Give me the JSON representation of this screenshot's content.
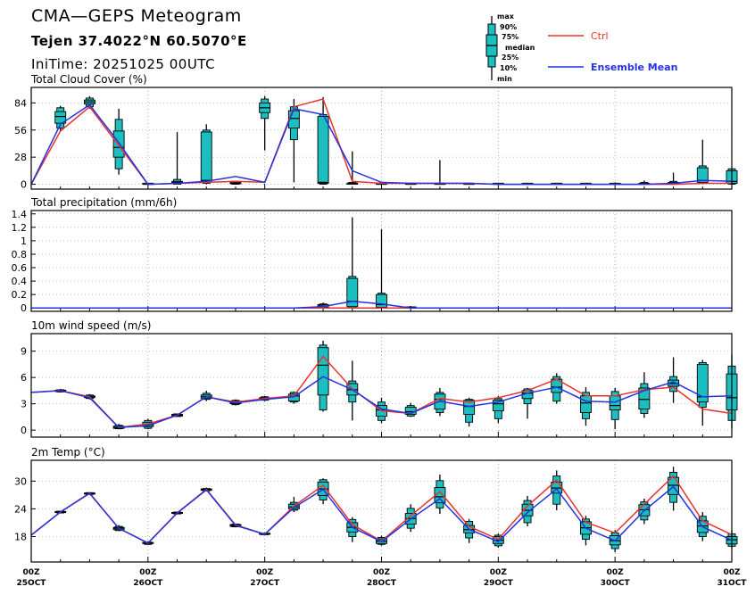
{
  "header": {
    "title": "CMA—GEPS Meteogram",
    "location": "Tejen 37.4022°N 60.5070°E",
    "init_time": "IniTime: 20251025 00UTC"
  },
  "legend": {
    "box_labels": [
      "max",
      "90%",
      "75%",
      "median",
      "25%",
      "10%",
      "min"
    ],
    "ctrl_label": "Ctrl",
    "mean_label": "Ensemble Mean",
    "ctrl_color": "#e8322e",
    "mean_color": "#2433e0",
    "box_fill": "#1cbfc0"
  },
  "x_axis": {
    "tick_hour_labels": [
      "00Z",
      "00Z",
      "00Z",
      "00Z",
      "00Z",
      "00Z",
      "00Z"
    ],
    "tick_date_labels": [
      "25OCT",
      "26OCT",
      "27OCT",
      "28OCT",
      "29OCT",
      "30OCT",
      "31OCT"
    ],
    "n_steps": 24,
    "step_hours": 6
  },
  "chart_data": [
    {
      "type": "box",
      "title": "Total Cloud Cover (%)",
      "ylim": [
        -5,
        100
      ],
      "yticks": [
        0,
        28,
        56,
        84
      ],
      "ytick_labels": [
        "0",
        "28",
        "56",
        "84"
      ],
      "ctrl": [
        0,
        55,
        80,
        40,
        0,
        1,
        2,
        3,
        2,
        80,
        88,
        3,
        1,
        1,
        1,
        1,
        0,
        0,
        0,
        0,
        0,
        0,
        0,
        1,
        1
      ],
      "mean": [
        0,
        62,
        82,
        43,
        0,
        1,
        3,
        8,
        2,
        78,
        72,
        14,
        2,
        1,
        1,
        1,
        0,
        0,
        0,
        0,
        0,
        0,
        1,
        4,
        3
      ],
      "boxes": [
        {
          "i": 1,
          "min": 55,
          "p10": 58,
          "p25": 63,
          "med": 70,
          "p75": 75,
          "p90": 79,
          "max": 81
        },
        {
          "i": 2,
          "min": 78,
          "p10": 80,
          "p25": 83,
          "med": 85,
          "p75": 87,
          "p90": 89,
          "max": 91
        },
        {
          "i": 3,
          "min": 10,
          "p10": 16,
          "p25": 28,
          "med": 38,
          "p75": 55,
          "p90": 67,
          "max": 78
        },
        {
          "i": 4,
          "min": 0,
          "p10": 0,
          "p25": 0,
          "med": 0,
          "p75": 0.5,
          "p90": 1,
          "max": 1
        },
        {
          "i": 5,
          "min": 0,
          "p10": 0,
          "p25": 1,
          "med": 2,
          "p75": 3,
          "p90": 5,
          "max": 54
        },
        {
          "i": 6,
          "min": 0,
          "p10": 1,
          "p25": 2,
          "med": 4,
          "p75": 54,
          "p90": 56,
          "max": 62
        },
        {
          "i": 7,
          "min": 0,
          "p10": 0,
          "p25": 0.5,
          "med": 1,
          "p75": 2,
          "p90": 3,
          "max": 3
        },
        {
          "i": 8,
          "min": 35,
          "p10": 68,
          "p25": 74,
          "med": 79,
          "p75": 84,
          "p90": 88,
          "max": 91
        },
        {
          "i": 9,
          "min": 2,
          "p10": 46,
          "p25": 58,
          "med": 68,
          "p75": 76,
          "p90": 80,
          "max": 88
        },
        {
          "i": 10,
          "min": 0,
          "p10": 0,
          "p25": 1,
          "med": 2,
          "p75": 70,
          "p90": 72,
          "max": 90
        },
        {
          "i": 11,
          "min": 0,
          "p10": 0,
          "p25": 0,
          "med": 1,
          "p75": 1,
          "p90": 2,
          "max": 34
        },
        {
          "i": 12,
          "min": 0,
          "p10": 0,
          "p25": 0,
          "med": 0,
          "p75": 1,
          "p90": 1,
          "max": 1
        },
        {
          "i": 13,
          "min": 0,
          "p10": 0,
          "p25": 0,
          "med": 0,
          "p75": 0,
          "p90": 1,
          "max": 1
        },
        {
          "i": 14,
          "min": 0,
          "p10": 0,
          "p25": 0,
          "med": 0,
          "p75": 0,
          "p90": 1,
          "max": 25
        },
        {
          "i": 15,
          "min": 0,
          "p10": 0,
          "p25": 0,
          "med": 0,
          "p75": 0,
          "p90": 1,
          "max": 1
        },
        {
          "i": 16,
          "min": 0,
          "p10": 0,
          "p25": 0,
          "med": 0,
          "p75": 0,
          "p90": 0.5,
          "max": 1
        },
        {
          "i": 17,
          "min": 0,
          "p10": 0,
          "p25": 0,
          "med": 0,
          "p75": 0,
          "p90": 0.5,
          "max": 1
        },
        {
          "i": 18,
          "min": 0,
          "p10": 0,
          "p25": 0,
          "med": 0,
          "p75": 0,
          "p90": 0.5,
          "max": 1
        },
        {
          "i": 19,
          "min": 0,
          "p10": 0,
          "p25": 0,
          "med": 0,
          "p75": 0,
          "p90": 0.5,
          "max": 1
        },
        {
          "i": 20,
          "min": 0,
          "p10": 0,
          "p25": 0,
          "med": 0,
          "p75": 0,
          "p90": 1,
          "max": 2
        },
        {
          "i": 21,
          "min": 0,
          "p10": 0,
          "p25": 0,
          "med": 0,
          "p75": 1,
          "p90": 2,
          "max": 4
        },
        {
          "i": 22,
          "min": 0,
          "p10": 0,
          "p25": 0,
          "med": 1,
          "p75": 2,
          "p90": 3,
          "max": 12
        },
        {
          "i": 23,
          "min": 0,
          "p10": 1,
          "p25": 2,
          "med": 4,
          "p75": 17,
          "p90": 19,
          "max": 46
        },
        {
          "i": 24,
          "min": 0,
          "p10": 0,
          "p25": 1,
          "med": 3,
          "p75": 14,
          "p90": 16,
          "max": 16
        }
      ]
    },
    {
      "type": "box",
      "title": "Total precipitation (mm/6h)",
      "ylim": [
        -0.05,
        1.45
      ],
      "yticks": [
        0,
        0.2,
        0.4,
        0.6,
        0.8,
        1,
        1.2,
        1.4
      ],
      "ytick_labels": [
        "0",
        "0.2",
        "0.4",
        "0.6",
        "0.8",
        "1",
        "1.2",
        "1.4"
      ],
      "ctrl": [
        0,
        0,
        0,
        0,
        0,
        0,
        0,
        0,
        0,
        0,
        0,
        0,
        0,
        0,
        0,
        0,
        0,
        0,
        0,
        0,
        0,
        0,
        0,
        0,
        0
      ],
      "mean": [
        0,
        0,
        0,
        0,
        0,
        0,
        0,
        0,
        0,
        0,
        0.02,
        0.1,
        0.06,
        0,
        0,
        0,
        0,
        0,
        0,
        0,
        0,
        0,
        0,
        0,
        0
      ],
      "boxes": [
        {
          "i": 10,
          "min": 0,
          "p10": 0,
          "p25": 0.01,
          "med": 0.03,
          "p75": 0.05,
          "p90": 0.06,
          "max": 0.08
        },
        {
          "i": 11,
          "min": 0,
          "p10": 0,
          "p25": 0.02,
          "med": 0.1,
          "p75": 0.44,
          "p90": 0.47,
          "max": 1.35
        },
        {
          "i": 12,
          "min": 0,
          "p10": 0,
          "p25": 0.01,
          "med": 0.05,
          "p75": 0.2,
          "p90": 0.22,
          "max": 1.17
        },
        {
          "i": 13,
          "min": 0,
          "p10": 0,
          "p25": 0,
          "med": 0,
          "p75": 0,
          "p90": 0.01,
          "max": 0.03
        }
      ]
    },
    {
      "type": "box",
      "title": "10m wind speed (m/s)",
      "ylim": [
        -0.8,
        11
      ],
      "yticks": [
        0,
        3,
        6,
        9
      ],
      "ytick_labels": [
        "0",
        "3",
        "6",
        "9"
      ],
      "ctrl": [
        4.3,
        4.5,
        3.8,
        0.3,
        0.7,
        1.7,
        3.8,
        3.2,
        3.6,
        3.9,
        8.4,
        4.7,
        2.2,
        1.9,
        3.6,
        3.2,
        3.7,
        4.5,
        5.8,
        3.9,
        3.9,
        4.6,
        4.9,
        2.4,
        1.9
      ],
      "mean": [
        4.3,
        4.5,
        3.7,
        0.3,
        0.5,
        1.7,
        3.8,
        3.1,
        3.5,
        3.8,
        6.1,
        4.6,
        2.4,
        1.9,
        3.3,
        2.7,
        3.2,
        4.2,
        4.9,
        3.3,
        3.2,
        4.5,
        5.5,
        3.8,
        3.9
      ],
      "boxes": [
        {
          "i": 1,
          "min": 4.3,
          "p10": 4.35,
          "p25": 4.4,
          "med": 4.5,
          "p75": 4.55,
          "p90": 4.6,
          "max": 4.7
        },
        {
          "i": 2,
          "min": 3.5,
          "p10": 3.6,
          "p25": 3.7,
          "med": 3.8,
          "p75": 3.9,
          "p90": 4.0,
          "max": 4.1
        },
        {
          "i": 3,
          "min": 0.1,
          "p10": 0.15,
          "p25": 0.2,
          "med": 0.3,
          "p75": 0.45,
          "p90": 0.55,
          "max": 0.7
        },
        {
          "i": 4,
          "min": 0.1,
          "p10": 0.2,
          "p25": 0.4,
          "med": 0.6,
          "p75": 0.9,
          "p90": 1.1,
          "max": 1.3
        },
        {
          "i": 5,
          "min": 1.5,
          "p10": 1.55,
          "p25": 1.6,
          "med": 1.7,
          "p75": 1.8,
          "p90": 1.85,
          "max": 1.9
        },
        {
          "i": 6,
          "min": 3.3,
          "p10": 3.5,
          "p25": 3.6,
          "med": 3.8,
          "p75": 4.0,
          "p90": 4.2,
          "max": 4.5
        },
        {
          "i": 7,
          "min": 2.8,
          "p10": 2.9,
          "p25": 3.0,
          "med": 3.1,
          "p75": 3.3,
          "p90": 3.4,
          "max": 3.5
        },
        {
          "i": 8,
          "min": 3.3,
          "p10": 3.4,
          "p25": 3.5,
          "med": 3.6,
          "p75": 3.7,
          "p90": 3.8,
          "max": 3.9
        },
        {
          "i": 9,
          "min": 3.0,
          "p10": 3.2,
          "p25": 3.3,
          "med": 3.9,
          "p75": 4.1,
          "p90": 4.3,
          "max": 4.4
        },
        {
          "i": 10,
          "min": 2.1,
          "p10": 2.3,
          "p25": 4.0,
          "med": 7.4,
          "p75": 9.4,
          "p90": 9.7,
          "max": 10.2
        },
        {
          "i": 11,
          "min": 1.1,
          "p10": 3.2,
          "p25": 4.0,
          "med": 4.6,
          "p75": 5.3,
          "p90": 5.6,
          "max": 7.9
        },
        {
          "i": 12,
          "min": 0.8,
          "p10": 1.1,
          "p25": 1.6,
          "med": 2.3,
          "p75": 2.8,
          "p90": 3.2,
          "max": 3.7
        },
        {
          "i": 13,
          "min": 1.5,
          "p10": 1.6,
          "p25": 1.8,
          "med": 2.1,
          "p75": 2.6,
          "p90": 2.8,
          "max": 3.1
        },
        {
          "i": 14,
          "min": 1.6,
          "p10": 2.0,
          "p25": 2.4,
          "med": 3.5,
          "p75": 4.1,
          "p90": 4.3,
          "max": 4.8
        },
        {
          "i": 15,
          "min": 0.4,
          "p10": 0.9,
          "p25": 1.8,
          "med": 2.7,
          "p75": 3.4,
          "p90": 3.5,
          "max": 3.7
        },
        {
          "i": 16,
          "min": 0.8,
          "p10": 1.3,
          "p25": 2.2,
          "med": 3.0,
          "p75": 3.4,
          "p90": 3.6,
          "max": 3.9
        },
        {
          "i": 17,
          "min": 1.3,
          "p10": 3.0,
          "p25": 3.6,
          "med": 4.2,
          "p75": 4.5,
          "p90": 4.7,
          "max": 4.8
        },
        {
          "i": 18,
          "min": 3.0,
          "p10": 3.3,
          "p25": 4.3,
          "med": 4.9,
          "p75": 5.8,
          "p90": 6.1,
          "max": 6.5
        },
        {
          "i": 19,
          "min": 0.5,
          "p10": 1.3,
          "p25": 2.0,
          "med": 3.1,
          "p75": 3.9,
          "p90": 4.3,
          "max": 4.9
        },
        {
          "i": 20,
          "min": 0.1,
          "p10": 1.2,
          "p25": 2.3,
          "med": 2.8,
          "p75": 3.9,
          "p90": 4.4,
          "max": 4.8
        },
        {
          "i": 21,
          "min": 1.4,
          "p10": 1.9,
          "p25": 2.4,
          "med": 3.5,
          "p75": 4.8,
          "p90": 5.3,
          "max": 6.6
        },
        {
          "i": 22,
          "min": 3.1,
          "p10": 4.4,
          "p25": 5.0,
          "med": 5.3,
          "p75": 5.7,
          "p90": 6.1,
          "max": 8.3
        },
        {
          "i": 23,
          "min": 0.5,
          "p10": 2.6,
          "p25": 3.2,
          "med": 3.8,
          "p75": 7.5,
          "p90": 7.7,
          "max": 8.0
        },
        {
          "i": 24,
          "min": 0.2,
          "p10": 1.1,
          "p25": 2.3,
          "med": 3.7,
          "p75": 6.4,
          "p90": 7.3,
          "max": 8.6
        }
      ]
    },
    {
      "type": "box",
      "title": "2m Temp (°C)",
      "ylim": [
        12.5,
        34.5
      ],
      "yticks": [
        18,
        24,
        30
      ],
      "ytick_labels": [
        "18",
        "24",
        "30"
      ],
      "ctrl": [
        18.3,
        23.3,
        27.3,
        19.8,
        16.6,
        23.1,
        28.2,
        20.5,
        18.5,
        24.6,
        29.1,
        20.6,
        17.0,
        22.5,
        27.7,
        20.2,
        17.4,
        24.6,
        30.2,
        21.1,
        18.8,
        25.0,
        31.1,
        21.4,
        18.4
      ],
      "mean": [
        18.3,
        23.3,
        27.4,
        19.8,
        16.6,
        23.1,
        28.1,
        20.4,
        18.5,
        24.3,
        28.2,
        20.0,
        16.9,
        21.8,
        26.2,
        19.6,
        16.9,
        23.2,
        28.3,
        19.8,
        17.1,
        23.6,
        28.8,
        20.1,
        17.2
      ],
      "boxes": [
        {
          "i": 1,
          "min": 23.0,
          "p10": 23.1,
          "p25": 23.2,
          "med": 23.3,
          "p75": 23.4,
          "p90": 23.5,
          "max": 23.6
        },
        {
          "i": 2,
          "min": 27.0,
          "p10": 27.1,
          "p25": 27.2,
          "med": 27.3,
          "p75": 27.4,
          "p90": 27.5,
          "max": 27.6
        },
        {
          "i": 3,
          "min": 19.2,
          "p10": 19.3,
          "p25": 19.5,
          "med": 19.8,
          "p75": 20.0,
          "p90": 20.2,
          "max": 20.5
        },
        {
          "i": 4,
          "min": 16.2,
          "p10": 16.3,
          "p25": 16.5,
          "med": 16.6,
          "p75": 16.7,
          "p90": 16.8,
          "max": 17.0
        },
        {
          "i": 5,
          "min": 22.8,
          "p10": 22.9,
          "p25": 23.0,
          "med": 23.1,
          "p75": 23.2,
          "p90": 23.3,
          "max": 23.4
        },
        {
          "i": 6,
          "min": 27.8,
          "p10": 27.9,
          "p25": 28.0,
          "med": 28.2,
          "p75": 28.3,
          "p90": 28.4,
          "max": 28.6
        },
        {
          "i": 7,
          "min": 20.0,
          "p10": 20.1,
          "p25": 20.2,
          "med": 20.4,
          "p75": 20.6,
          "p90": 20.7,
          "max": 20.8
        },
        {
          "i": 8,
          "min": 18.3,
          "p10": 18.4,
          "p25": 18.5,
          "med": 18.5,
          "p75": 18.6,
          "p90": 18.7,
          "max": 18.8
        },
        {
          "i": 9,
          "min": 23.3,
          "p10": 23.7,
          "p25": 24.0,
          "med": 24.4,
          "p75": 25.0,
          "p90": 25.4,
          "max": 26.6
        },
        {
          "i": 10,
          "min": 25.0,
          "p10": 25.9,
          "p25": 26.9,
          "med": 28.3,
          "p75": 29.8,
          "p90": 30.3,
          "max": 30.6
        },
        {
          "i": 11,
          "min": 16.8,
          "p10": 18.0,
          "p25": 19.0,
          "med": 20.0,
          "p75": 21.0,
          "p90": 21.7,
          "max": 22.2
        },
        {
          "i": 12,
          "min": 16.0,
          "p10": 16.3,
          "p25": 16.5,
          "med": 17.0,
          "p75": 17.5,
          "p90": 17.8,
          "max": 18.2
        },
        {
          "i": 13,
          "min": 19.0,
          "p10": 19.8,
          "p25": 20.7,
          "med": 21.9,
          "p75": 23.0,
          "p90": 24.1,
          "max": 25.0
        },
        {
          "i": 14,
          "min": 22.9,
          "p10": 24.2,
          "p25": 25.3,
          "med": 26.6,
          "p75": 28.6,
          "p90": 30.1,
          "max": 31.4
        },
        {
          "i": 15,
          "min": 16.6,
          "p10": 17.7,
          "p25": 18.8,
          "med": 19.5,
          "p75": 20.4,
          "p90": 21.3,
          "max": 21.8
        },
        {
          "i": 16,
          "min": 15.6,
          "p10": 16.0,
          "p25": 16.5,
          "med": 17.2,
          "p75": 18.0,
          "p90": 18.3,
          "max": 18.7
        },
        {
          "i": 17,
          "min": 20.2,
          "p10": 21.0,
          "p25": 22.5,
          "med": 23.7,
          "p75": 25.0,
          "p90": 25.8,
          "max": 26.8
        },
        {
          "i": 18,
          "min": 23.7,
          "p10": 25.0,
          "p25": 27.4,
          "med": 28.5,
          "p75": 29.8,
          "p90": 31.1,
          "max": 32.3
        },
        {
          "i": 19,
          "min": 16.1,
          "p10": 17.4,
          "p25": 18.5,
          "med": 19.9,
          "p75": 21.2,
          "p90": 21.8,
          "max": 22.5
        },
        {
          "i": 20,
          "min": 14.6,
          "p10": 15.4,
          "p25": 16.2,
          "med": 17.1,
          "p75": 18.2,
          "p90": 18.8,
          "max": 19.4
        },
        {
          "i": 21,
          "min": 20.7,
          "p10": 21.6,
          "p25": 22.5,
          "med": 23.8,
          "p75": 24.9,
          "p90": 25.5,
          "max": 26.2
        },
        {
          "i": 22,
          "min": 23.6,
          "p10": 25.4,
          "p25": 27.1,
          "med": 29.1,
          "p75": 30.8,
          "p90": 31.9,
          "max": 33.1
        },
        {
          "i": 23,
          "min": 17.0,
          "p10": 18.0,
          "p25": 18.9,
          "med": 20.3,
          "p75": 21.4,
          "p90": 22.4,
          "max": 23.3
        },
        {
          "i": 24,
          "min": 15.5,
          "p10": 15.9,
          "p25": 16.4,
          "med": 17.3,
          "p75": 18.0,
          "p90": 18.6,
          "max": 19.2
        }
      ]
    }
  ]
}
